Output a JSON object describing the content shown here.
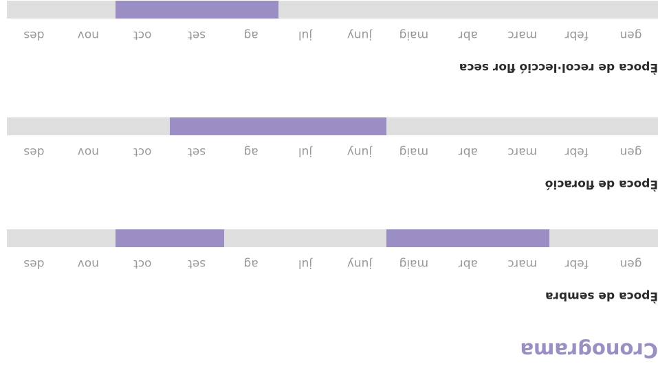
{
  "title": "Cronograma",
  "months": [
    "gen",
    "febr",
    "marc",
    "abr",
    "maig",
    "juny",
    "jul",
    "ag",
    "set",
    "oct",
    "nov",
    "des"
  ],
  "sections": [
    {
      "heading": "Època de sembra",
      "periods": [
        [
          2,
          4
        ],
        [
          8,
          9
        ]
      ]
    },
    {
      "heading": "Època de floració",
      "periods": [
        [
          5,
          8
        ]
      ]
    },
    {
      "heading": "Època de recol·lecció flor seca",
      "periods": [
        [
          7,
          9
        ]
      ]
    }
  ]
}
